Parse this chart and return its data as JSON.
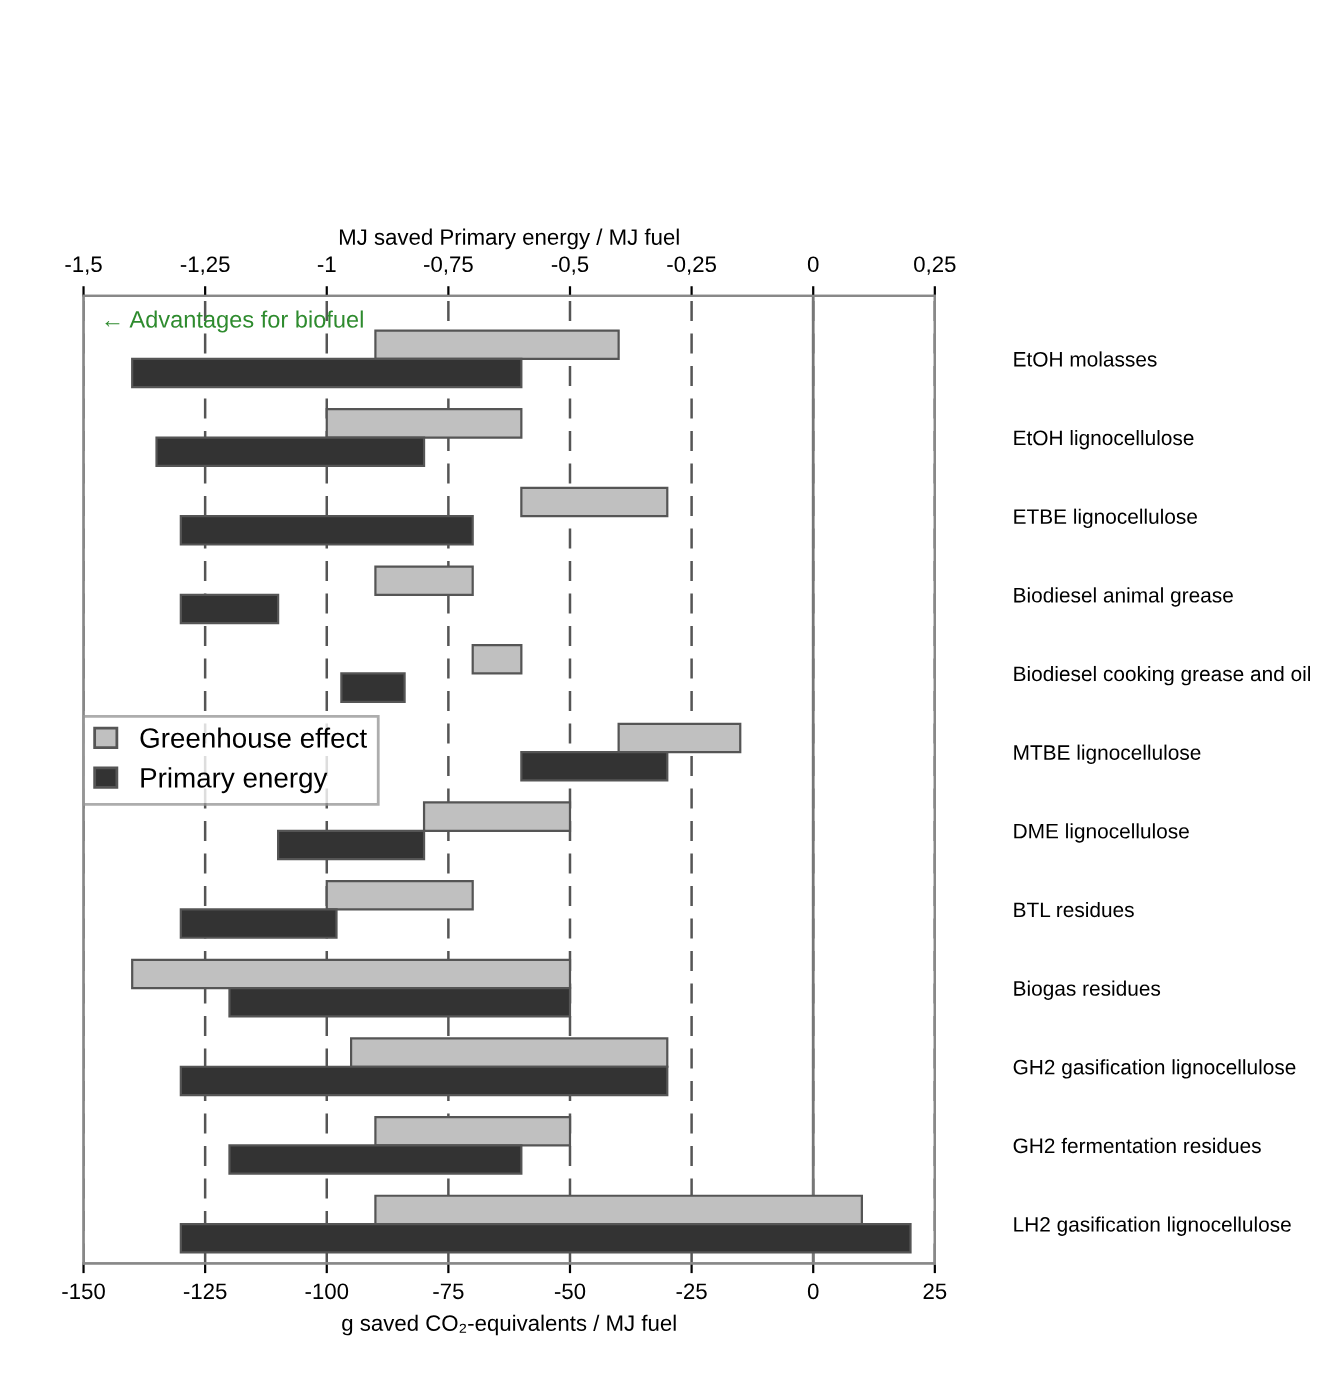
{
  "chart_data": {
    "type": "bar",
    "orientation": "horizontal",
    "xlabel": "g saved CO₂-equivalents / MJ fuel",
    "x2label": "MJ saved Primary energy / MJ fuel",
    "categories": [
      "EtOH molasses",
      "EtOH lignocellulose",
      "ETBE lignocellulose",
      "Biodiesel animal grease",
      "Biodiesel cooking grease and oil",
      "MTBE lignocellulose",
      "DME lignocellulose",
      "BTL residues",
      "Biogas residues",
      "GH2 gasification lignocellulose",
      "GH2 fermentation residues",
      "LH2 gasification lignocellulose"
    ],
    "series": [
      {
        "name": "Greenhouse effect",
        "color": "#c0c0c0",
        "base": [
          -90,
          -100,
          -60,
          -90,
          -70,
          -40,
          -80,
          -100,
          -140,
          -95,
          -90,
          -90
        ],
        "values": [
          50,
          40,
          30,
          20,
          10,
          25,
          30,
          30,
          90,
          65,
          40,
          100
        ]
      },
      {
        "name": "Primary energy",
        "color": "#333333",
        "axis": "x2",
        "base": [
          -1.4,
          -1.35,
          -1.3,
          -1.3,
          -0.97,
          -0.6,
          -1.1,
          -1.3,
          -1.2,
          -1.3,
          -1.2,
          -1.3
        ],
        "values": [
          0.8,
          0.55,
          0.6,
          0.2,
          0.13,
          0.3,
          0.3,
          0.32,
          0.7,
          1.0,
          0.6,
          1.5
        ]
      }
    ],
    "xlim": [
      -150,
      25
    ],
    "xticks": [
      -150,
      -125,
      -100,
      -75,
      -50,
      -25,
      0,
      25
    ],
    "x2lim": [
      -1.5,
      0.25
    ],
    "x2ticks": [
      {
        "value": -1.5,
        "label": "-1,5"
      },
      {
        "value": -1.25,
        "label": "-1,25"
      },
      {
        "value": -1,
        "label": "-1"
      },
      {
        "value": -0.75,
        "label": "-0,75"
      },
      {
        "value": -0.5,
        "label": "-0,5"
      },
      {
        "value": -0.25,
        "label": "-0,25"
      },
      {
        "value": 0,
        "label": "0"
      },
      {
        "value": 0.25,
        "label": "0,25"
      }
    ],
    "grid": "x",
    "line_style": "dashed",
    "ref_lines": [
      {
        "axis": "x",
        "value": 0,
        "line_style": "solid"
      }
    ],
    "legend": "left",
    "annotations": [
      "← Advantages for biofuel"
    ]
  }
}
